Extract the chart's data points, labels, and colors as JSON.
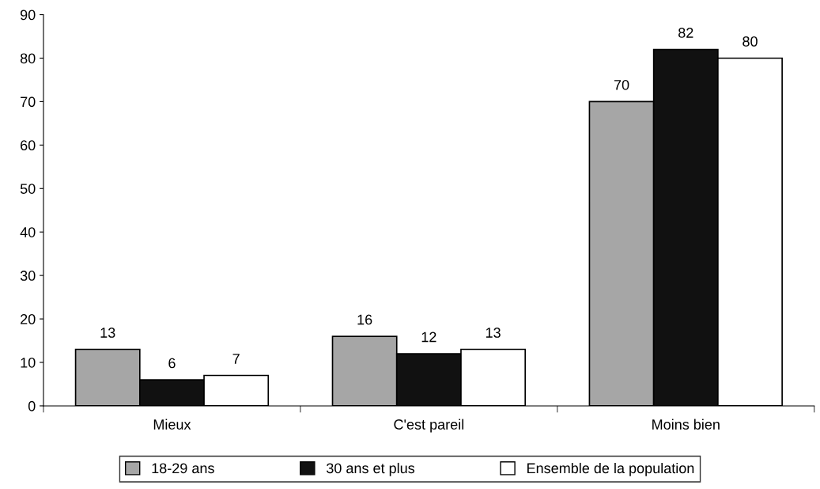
{
  "chart_data": {
    "type": "bar",
    "categories": [
      "Mieux",
      "C'est pareil",
      "Moins bien"
    ],
    "series": [
      {
        "name": "18-29 ans",
        "color": "#a6a6a6",
        "values": [
          13,
          16,
          70
        ]
      },
      {
        "name": "30 ans et plus",
        "color": "#111111",
        "values": [
          6,
          12,
          82
        ]
      },
      {
        "name": "Ensemble de la population",
        "color": "#ffffff",
        "values": [
          7,
          13,
          80
        ]
      }
    ],
    "ylim": [
      0,
      90
    ],
    "yticks": [
      0,
      10,
      20,
      30,
      40,
      50,
      60,
      70,
      80,
      90
    ],
    "grid": false,
    "legend": "bottom",
    "data_labels": true
  }
}
